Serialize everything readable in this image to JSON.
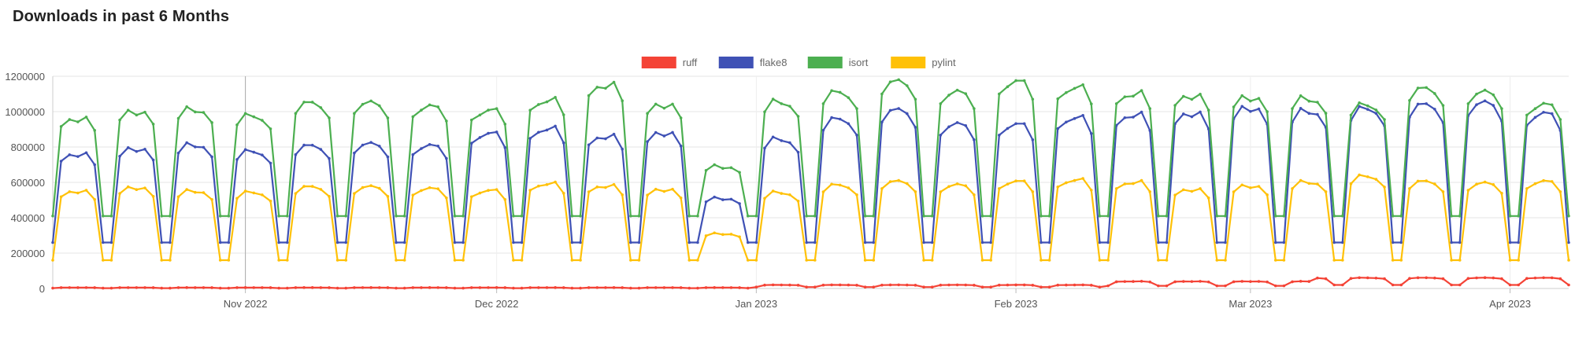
{
  "title": "Downloads in past 6 Months",
  "chart_data": {
    "type": "line",
    "title": "Downloads in past 6 Months",
    "xlabel": "",
    "ylabel": "",
    "ylim": [
      0,
      1200000
    ],
    "y_ticks": [
      0,
      200000,
      400000,
      600000,
      800000,
      1000000,
      1200000
    ],
    "x_start": "2022-10-09",
    "x_end": "2023-04-08",
    "x_ticks": [
      {
        "label": "Nov 2022",
        "day_index": 23
      },
      {
        "label": "Dec 2022",
        "day_index": 53
      },
      {
        "label": "Jan 2023",
        "day_index": 84
      },
      {
        "label": "Feb 2023",
        "day_index": 115
      },
      {
        "label": "Mar 2023",
        "day_index": 143
      },
      {
        "label": "Apr 2023",
        "day_index": 174
      }
    ],
    "legend_position": "top-center",
    "grid": true,
    "series": [
      {
        "name": "ruff",
        "color": "#f44336",
        "values": [
          3000,
          3000,
          3000,
          3000,
          3000,
          3000,
          3000,
          3000,
          3000,
          3000,
          3000,
          3000,
          3000,
          3000,
          3000,
          3000,
          3000,
          3000,
          3000,
          3000,
          3000,
          3000,
          3000,
          3000,
          3000,
          3000,
          3000,
          3000,
          3000,
          3000,
          3000,
          3000,
          3000,
          3000,
          3000,
          3000,
          3000,
          3000,
          3000,
          3000,
          3000,
          3000,
          3000,
          3000,
          3000,
          3000,
          3000,
          3000,
          3000,
          3000,
          3000,
          3000,
          3000,
          3000,
          3000,
          3000,
          3000,
          3000,
          3000,
          3000,
          3000,
          3000,
          3000,
          3000,
          3000,
          3000,
          3000,
          3000,
          3000,
          3000,
          3000,
          3000,
          3000,
          3000,
          3000,
          3000,
          3000,
          3000,
          3000,
          3000,
          3000,
          3000,
          3000,
          3000,
          3000,
          3000,
          3000,
          3000,
          3000,
          3000,
          3000,
          3000,
          3000,
          3000,
          3000,
          3000,
          3000,
          3000,
          3000,
          3000,
          3000,
          3000,
          3000,
          3000,
          3000,
          3000,
          3000,
          3000,
          3000,
          3000,
          3000,
          3000,
          3000,
          3000,
          3000,
          3000,
          3000,
          3000,
          3000,
          3000,
          3000,
          3000,
          3000,
          3000,
          3000,
          3000,
          3000,
          3000,
          3000,
          3000,
          3000,
          3000,
          3000,
          3000,
          3000,
          3000,
          3000,
          3000,
          3000,
          3000,
          3000,
          3000,
          3000,
          3000,
          3000,
          3000,
          3000,
          3000,
          3000,
          3000,
          3000,
          3000,
          3000,
          3000,
          3000,
          3000,
          3000,
          3000,
          3000,
          3000,
          3000,
          3000,
          3000,
          3000,
          3000,
          3000,
          3000,
          3000,
          3000,
          3000,
          3000,
          3000,
          3000,
          3000,
          3000,
          3000,
          3000,
          3000,
          3000,
          3000,
          3000
        ],
        "weekday_base": [
          {
            "from_day": 0,
            "to_day": 83,
            "v": 5000
          },
          {
            "from_day": 84,
            "to_day": 125,
            "v": 20000
          },
          {
            "from_day": 126,
            "to_day": 150,
            "v": 40000
          },
          {
            "from_day": 151,
            "to_day": 181,
            "v": 60000
          }
        ],
        "weekend": [
          {
            "from_day": 0,
            "to_day": 83,
            "v": 2000
          },
          {
            "from_day": 84,
            "to_day": 125,
            "v": 8000
          },
          {
            "from_day": 126,
            "to_day": 150,
            "v": 15000
          },
          {
            "from_day": 151,
            "to_day": 181,
            "v": 20000
          }
        ]
      },
      {
        "name": "flake8",
        "color": "#3f51b5",
        "weekday_base": [
          {
            "from_day": 0,
            "to_day": 6,
            "v": 760000
          },
          {
            "from_day": 7,
            "to_day": 13,
            "v": 790000
          },
          {
            "from_day": 14,
            "to_day": 20,
            "v": 810000
          },
          {
            "from_day": 21,
            "to_day": 27,
            "v": 770000
          },
          {
            "from_day": 28,
            "to_day": 34,
            "v": 800000
          },
          {
            "from_day": 35,
            "to_day": 41,
            "v": 810000
          },
          {
            "from_day": 42,
            "to_day": 48,
            "v": 800000
          },
          {
            "from_day": 49,
            "to_day": 55,
            "v": 870000
          },
          {
            "from_day": 56,
            "to_day": 62,
            "v": 900000
          },
          {
            "from_day": 63,
            "to_day": 69,
            "v": 860000
          },
          {
            "from_day": 70,
            "to_day": 76,
            "v": 880000
          },
          {
            "from_day": 77,
            "to_day": 83,
            "v": 510000
          },
          {
            "from_day": 84,
            "to_day": 90,
            "v": 840000
          },
          {
            "from_day": 91,
            "to_day": 97,
            "v": 950000
          },
          {
            "from_day": 98,
            "to_day": 104,
            "v": 1000000
          },
          {
            "from_day": 105,
            "to_day": 111,
            "v": 920000
          },
          {
            "from_day": 112,
            "to_day": 118,
            "v": 920000
          },
          {
            "from_day": 119,
            "to_day": 125,
            "v": 960000
          },
          {
            "from_day": 126,
            "to_day": 132,
            "v": 980000
          },
          {
            "from_day": 133,
            "to_day": 139,
            "v": 990000
          },
          {
            "from_day": 140,
            "to_day": 146,
            "v": 1020000
          },
          {
            "from_day": 147,
            "to_day": 153,
            "v": 1000000
          },
          {
            "from_day": 154,
            "to_day": 160,
            "v": 1010000
          },
          {
            "from_day": 161,
            "to_day": 167,
            "v": 1030000
          },
          {
            "from_day": 168,
            "to_day": 174,
            "v": 1040000
          },
          {
            "from_day": 175,
            "to_day": 181,
            "v": 980000
          }
        ],
        "weekend": [
          {
            "from_day": 0,
            "to_day": 181,
            "v": 260000
          }
        ]
      },
      {
        "name": "isort",
        "color": "#4caf50",
        "weekday_base": [
          {
            "from_day": 0,
            "to_day": 6,
            "v": 960000
          },
          {
            "from_day": 7,
            "to_day": 13,
            "v": 1000000
          },
          {
            "from_day": 14,
            "to_day": 20,
            "v": 1010000
          },
          {
            "from_day": 21,
            "to_day": 27,
            "v": 970000
          },
          {
            "from_day": 28,
            "to_day": 34,
            "v": 1040000
          },
          {
            "from_day": 35,
            "to_day": 41,
            "v": 1040000
          },
          {
            "from_day": 42,
            "to_day": 48,
            "v": 1020000
          },
          {
            "from_day": 49,
            "to_day": 55,
            "v": 1000000
          },
          {
            "from_day": 56,
            "to_day": 62,
            "v": 1060000
          },
          {
            "from_day": 63,
            "to_day": 69,
            "v": 1150000
          },
          {
            "from_day": 70,
            "to_day": 76,
            "v": 1040000
          },
          {
            "from_day": 77,
            "to_day": 83,
            "v": 690000
          },
          {
            "from_day": 84,
            "to_day": 90,
            "v": 1050000
          },
          {
            "from_day": 91,
            "to_day": 97,
            "v": 1100000
          },
          {
            "from_day": 98,
            "to_day": 104,
            "v": 1160000
          },
          {
            "from_day": 105,
            "to_day": 111,
            "v": 1100000
          },
          {
            "from_day": 112,
            "to_day": 118,
            "v": 1160000
          },
          {
            "from_day": 119,
            "to_day": 125,
            "v": 1130000
          },
          {
            "from_day": 126,
            "to_day": 132,
            "v": 1100000
          },
          {
            "from_day": 133,
            "to_day": 139,
            "v": 1090000
          },
          {
            "from_day": 140,
            "to_day": 146,
            "v": 1080000
          },
          {
            "from_day": 147,
            "to_day": 153,
            "v": 1070000
          },
          {
            "from_day": 154,
            "to_day": 160,
            "v": 1030000
          },
          {
            "from_day": 161,
            "to_day": 167,
            "v": 1120000
          },
          {
            "from_day": 168,
            "to_day": 174,
            "v": 1100000
          },
          {
            "from_day": 175,
            "to_day": 181,
            "v": 1030000
          }
        ],
        "weekend": [
          {
            "from_day": 0,
            "to_day": 181,
            "v": 410000
          }
        ]
      },
      {
        "name": "pylint",
        "color": "#ffc107",
        "weekday_base": [
          {
            "from_day": 0,
            "to_day": 6,
            "v": 550000
          },
          {
            "from_day": 7,
            "to_day": 13,
            "v": 570000
          },
          {
            "from_day": 14,
            "to_day": 20,
            "v": 550000
          },
          {
            "from_day": 21,
            "to_day": 27,
            "v": 540000
          },
          {
            "from_day": 28,
            "to_day": 34,
            "v": 570000
          },
          {
            "from_day": 35,
            "to_day": 41,
            "v": 570000
          },
          {
            "from_day": 42,
            "to_day": 48,
            "v": 560000
          },
          {
            "from_day": 49,
            "to_day": 55,
            "v": 550000
          },
          {
            "from_day": 56,
            "to_day": 62,
            "v": 590000
          },
          {
            "from_day": 63,
            "to_day": 69,
            "v": 580000
          },
          {
            "from_day": 70,
            "to_day": 76,
            "v": 560000
          },
          {
            "from_day": 77,
            "to_day": 83,
            "v": 310000
          },
          {
            "from_day": 84,
            "to_day": 90,
            "v": 540000
          },
          {
            "from_day": 91,
            "to_day": 97,
            "v": 580000
          },
          {
            "from_day": 98,
            "to_day": 104,
            "v": 600000
          },
          {
            "from_day": 105,
            "to_day": 111,
            "v": 580000
          },
          {
            "from_day": 112,
            "to_day": 118,
            "v": 600000
          },
          {
            "from_day": 119,
            "to_day": 125,
            "v": 610000
          },
          {
            "from_day": 126,
            "to_day": 132,
            "v": 600000
          },
          {
            "from_day": 133,
            "to_day": 139,
            "v": 560000
          },
          {
            "from_day": 140,
            "to_day": 146,
            "v": 580000
          },
          {
            "from_day": 147,
            "to_day": 153,
            "v": 600000
          },
          {
            "from_day": 154,
            "to_day": 160,
            "v": 630000
          },
          {
            "from_day": 161,
            "to_day": 167,
            "v": 600000
          },
          {
            "from_day": 168,
            "to_day": 174,
            "v": 590000
          },
          {
            "from_day": 175,
            "to_day": 181,
            "v": 600000
          }
        ],
        "weekend": [
          {
            "from_day": 0,
            "to_day": 181,
            "v": 160000
          }
        ]
      }
    ]
  }
}
